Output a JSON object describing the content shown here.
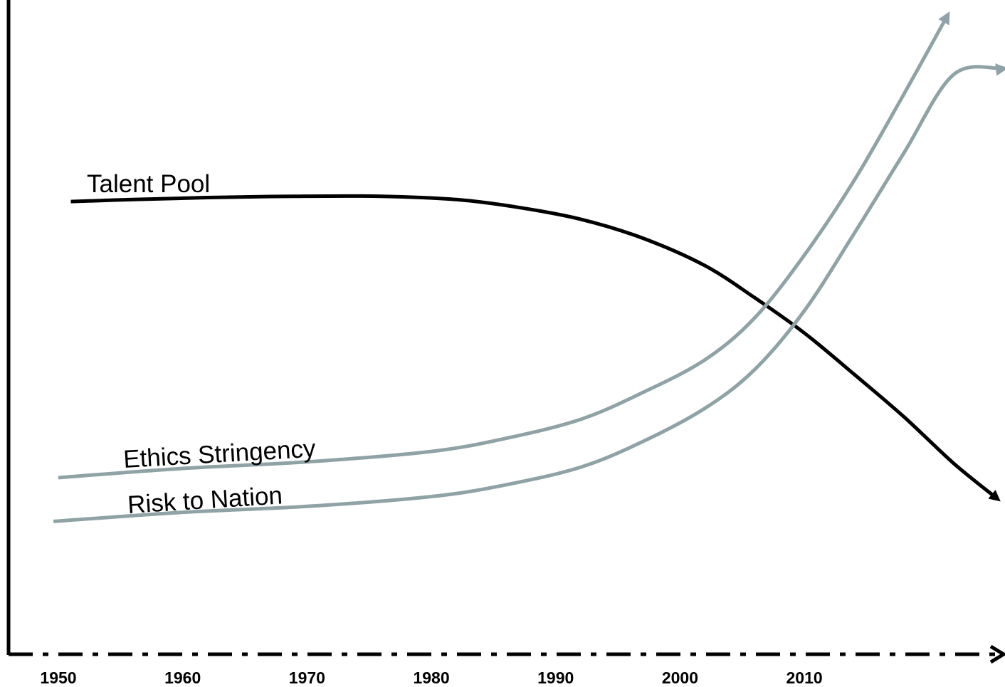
{
  "chart_data": {
    "type": "line",
    "title": "",
    "xlabel": "",
    "ylabel": "",
    "xlim": [
      1950,
      2026
    ],
    "ylim": [
      0,
      100
    ],
    "x_ticks": [
      "1950",
      "1960",
      "1970",
      "1980",
      "1990",
      "2000",
      "2010"
    ],
    "grid": false,
    "axis_style": {
      "x_axis": "dash-dot with arrowhead",
      "y_axis": "solid"
    },
    "series": [
      {
        "name": "Talent Pool",
        "color": "#000000",
        "arrow_end": true,
        "points": [
          [
            1951,
            69.2
          ],
          [
            1956,
            69.5
          ],
          [
            1962,
            69.8
          ],
          [
            1969,
            70.0
          ],
          [
            1976,
            70.0
          ],
          [
            1982,
            69.5
          ],
          [
            1987,
            68.3
          ],
          [
            1992,
            66.5
          ],
          [
            1997,
            63.6
          ],
          [
            2002,
            59.4
          ],
          [
            2006,
            54.5
          ],
          [
            2010,
            49.1
          ],
          [
            2014,
            42.8
          ],
          [
            2018,
            36.3
          ],
          [
            2022,
            29.2
          ],
          [
            2025.5,
            23.8
          ]
        ]
      },
      {
        "name": "Ethics Stringency",
        "color": "#8fa3a6",
        "arrow_end": true,
        "points": [
          [
            1950,
            27.0
          ],
          [
            1960,
            28.4
          ],
          [
            1970,
            29.4
          ],
          [
            1980,
            31.0
          ],
          [
            1986,
            33.0
          ],
          [
            1992,
            35.9
          ],
          [
            1997,
            40.0
          ],
          [
            2002,
            45.0
          ],
          [
            2006,
            51.4
          ],
          [
            2010,
            61.0
          ],
          [
            2014,
            72.4
          ],
          [
            2018,
            85.6
          ],
          [
            2021.5,
            97.6
          ]
        ]
      },
      {
        "name": "Risk to Nation",
        "color": "#8fa3a6",
        "arrow_end": true,
        "points": [
          [
            1949.6,
            20.3
          ],
          [
            1960,
            21.7
          ],
          [
            1970,
            22.6
          ],
          [
            1980,
            24.1
          ],
          [
            1986,
            25.9
          ],
          [
            1992,
            28.6
          ],
          [
            1997,
            32.5
          ],
          [
            2002,
            37.6
          ],
          [
            2006,
            43.5
          ],
          [
            2010,
            52.5
          ],
          [
            2014,
            64.3
          ],
          [
            2018,
            76.6
          ],
          [
            2022,
            88.6
          ],
          [
            2026,
            89.5
          ]
        ]
      }
    ]
  }
}
